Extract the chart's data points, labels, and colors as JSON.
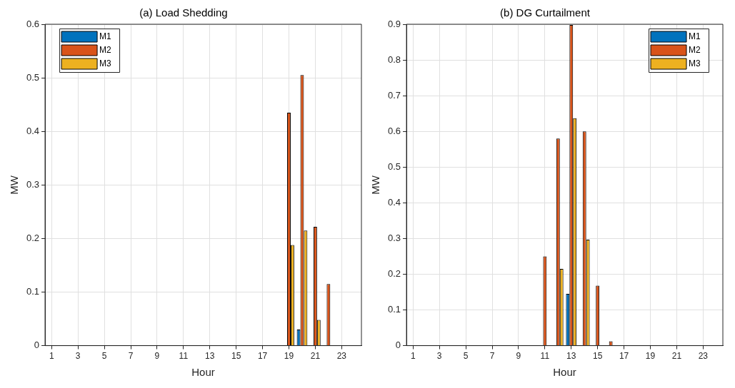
{
  "chart_data": [
    {
      "type": "bar",
      "title": "(a) Load Shedding",
      "xlabel": "Hour",
      "ylabel": "MW",
      "x": [
        1,
        2,
        3,
        4,
        5,
        6,
        7,
        8,
        9,
        10,
        11,
        12,
        13,
        14,
        15,
        16,
        17,
        18,
        19,
        20,
        21,
        22,
        23,
        24
      ],
      "series": [
        {
          "name": "M1",
          "color": "#0072bd",
          "values": [
            0,
            0,
            0,
            0,
            0,
            0,
            0,
            0,
            0,
            0,
            0,
            0,
            0,
            0,
            0,
            0,
            0,
            0,
            0,
            0.03,
            0,
            0,
            0,
            0
          ]
        },
        {
          "name": "M2",
          "color": "#d95319",
          "values": [
            0,
            0,
            0,
            0,
            0,
            0,
            0,
            0,
            0,
            0,
            0,
            0,
            0,
            0,
            0,
            0,
            0,
            0,
            0.435,
            0.505,
            0.222,
            0.115,
            0,
            0
          ]
        },
        {
          "name": "M3",
          "color": "#edb120",
          "values": [
            0,
            0,
            0,
            0,
            0,
            0,
            0,
            0,
            0,
            0,
            0,
            0,
            0,
            0,
            0,
            0,
            0,
            0,
            0.188,
            0.215,
            0.048,
            0,
            0,
            0
          ]
        }
      ],
      "xlim": [
        0.5,
        24.5
      ],
      "xticks": [
        1,
        3,
        5,
        7,
        9,
        11,
        13,
        15,
        17,
        19,
        21,
        23
      ],
      "ylim": [
        0,
        0.6
      ],
      "yticks": [
        0,
        0.1,
        0.2,
        0.3,
        0.4,
        0.5,
        0.6
      ],
      "grid": true,
      "legend": "top left"
    },
    {
      "type": "bar",
      "title": "(b) DG Curtailment",
      "xlabel": "Hour",
      "ylabel": "MW",
      "x": [
        1,
        2,
        3,
        4,
        5,
        6,
        7,
        8,
        9,
        10,
        11,
        12,
        13,
        14,
        15,
        16,
        17,
        18,
        19,
        20,
        21,
        22,
        23,
        24
      ],
      "series": [
        {
          "name": "M1",
          "color": "#0072bd",
          "values": [
            0,
            0,
            0,
            0,
            0,
            0,
            0,
            0,
            0,
            0,
            0,
            0,
            0.145,
            0,
            0,
            0,
            0,
            0,
            0,
            0,
            0,
            0,
            0,
            0
          ]
        },
        {
          "name": "M2",
          "color": "#d95319",
          "values": [
            0,
            0,
            0,
            0,
            0,
            0,
            0,
            0,
            0,
            0,
            0.25,
            0.58,
            0.898,
            0.6,
            0.168,
            0.012,
            0,
            0,
            0,
            0,
            0,
            0,
            0,
            0
          ]
        },
        {
          "name": "M3",
          "color": "#edb120",
          "values": [
            0,
            0,
            0,
            0,
            0,
            0,
            0,
            0,
            0,
            0,
            0,
            0.215,
            0.637,
            0.297,
            0,
            0,
            0,
            0,
            0,
            0,
            0,
            0,
            0,
            0
          ]
        }
      ],
      "xlim": [
        0.5,
        24.5
      ],
      "xticks": [
        1,
        3,
        5,
        7,
        9,
        11,
        13,
        15,
        17,
        19,
        21,
        23
      ],
      "ylim": [
        0,
        0.9
      ],
      "yticks": [
        0,
        0.1,
        0.2,
        0.3,
        0.4,
        0.5,
        0.6,
        0.7,
        0.8,
        0.9
      ],
      "grid": true,
      "legend": "top right"
    }
  ]
}
